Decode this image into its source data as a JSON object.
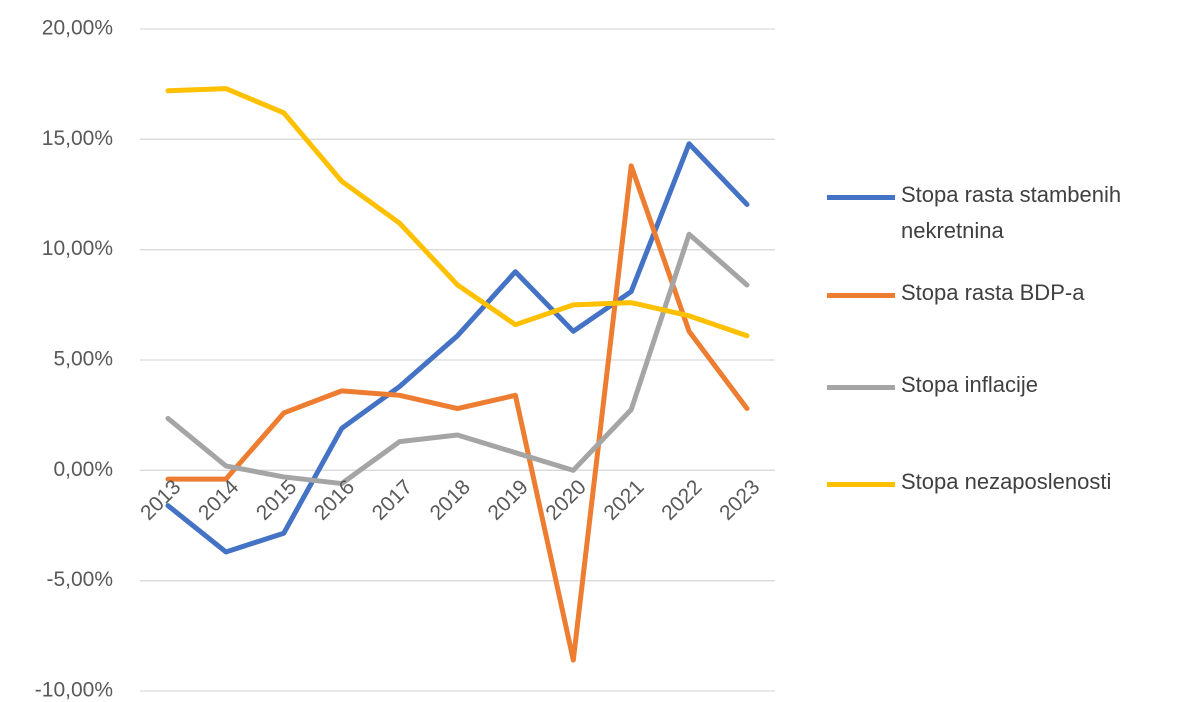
{
  "chart_data": {
    "type": "line",
    "categories": [
      "2013",
      "2014",
      "2015",
      "2016",
      "2017",
      "2018",
      "2019",
      "2020",
      "2021",
      "2022",
      "2023"
    ],
    "series": [
      {
        "name": "Stopa rasta stambenih nekretnina",
        "color": "#4472c4",
        "values": [
          -1.6,
          -3.7,
          -2.85,
          1.9,
          3.8,
          6.1,
          9.0,
          6.3,
          8.1,
          14.8,
          12.05
        ]
      },
      {
        "name": "Stopa rasta BDP-a",
        "color": "#ed7d31",
        "values": [
          -0.4,
          -0.4,
          2.6,
          3.6,
          3.4,
          2.8,
          3.4,
          -8.6,
          13.8,
          6.3,
          2.8
        ]
      },
      {
        "name": "Stopa inflacije",
        "color": "#a5a5a5",
        "values": [
          2.35,
          0.2,
          -0.3,
          -0.6,
          1.3,
          1.6,
          0.8,
          0.0,
          2.75,
          10.7,
          8.4
        ]
      },
      {
        "name": "Stopa nezaposlenosti",
        "color": "#ffc000",
        "values": [
          17.2,
          17.3,
          16.2,
          13.1,
          11.2,
          8.4,
          6.6,
          7.5,
          7.6,
          7.0,
          6.1
        ]
      }
    ],
    "ylim": [
      -10,
      20
    ],
    "yticks": [
      {
        "value": -10,
        "label": "-10,00%"
      },
      {
        "value": -5,
        "label": "-5,00%"
      },
      {
        "value": 0,
        "label": "0,00%"
      },
      {
        "value": 5,
        "label": "5,00%"
      },
      {
        "value": 10,
        "label": "10,00%"
      },
      {
        "value": 15,
        "label": "15,00%"
      },
      {
        "value": 20,
        "label": "20,00%"
      }
    ],
    "grid": true,
    "legend": "right"
  }
}
